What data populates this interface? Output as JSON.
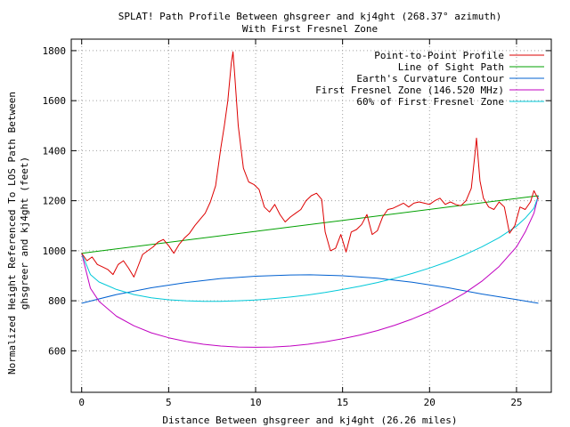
{
  "chart_data": {
    "type": "line",
    "title_line1": "SPLAT! Path Profile Between ghsgreer and kj4ght (268.37° azimuth)",
    "title_line2": "With First Fresnel Zone",
    "xlabel": "Distance Between ghsgreer and kj4ght (26.26 miles)",
    "ylabel_line1": "Normalized Height Referenced To LOS Path Between",
    "ylabel_line2": "ghsgreer and kj4ght (feet)",
    "xlim": [
      -0.6,
      27
    ],
    "ylim": [
      434,
      1846
    ],
    "xticks": [
      0,
      5,
      10,
      15,
      20,
      25
    ],
    "yticks": [
      600,
      800,
      1000,
      1200,
      1400,
      1600,
      1800
    ],
    "grid": true,
    "legend_position": "top-right",
    "series": [
      {
        "name": "Point-to-Point Profile",
        "color": "#dd0000",
        "points": [
          [
            0,
            990
          ],
          [
            0.3,
            960
          ],
          [
            0.6,
            975
          ],
          [
            0.9,
            945
          ],
          [
            1.2,
            935
          ],
          [
            1.5,
            925
          ],
          [
            1.8,
            905
          ],
          [
            2.1,
            945
          ],
          [
            2.4,
            960
          ],
          [
            2.7,
            930
          ],
          [
            3.0,
            895
          ],
          [
            3.2,
            930
          ],
          [
            3.5,
            985
          ],
          [
            3.8,
            1000
          ],
          [
            4.1,
            1015
          ],
          [
            4.4,
            1035
          ],
          [
            4.7,
            1045
          ],
          [
            5.0,
            1020
          ],
          [
            5.3,
            990
          ],
          [
            5.6,
            1025
          ],
          [
            5.9,
            1050
          ],
          [
            6.2,
            1070
          ],
          [
            6.5,
            1100
          ],
          [
            6.8,
            1125
          ],
          [
            7.1,
            1150
          ],
          [
            7.4,
            1195
          ],
          [
            7.7,
            1260
          ],
          [
            8.0,
            1410
          ],
          [
            8.2,
            1500
          ],
          [
            8.4,
            1600
          ],
          [
            8.6,
            1750
          ],
          [
            8.7,
            1795
          ],
          [
            8.8,
            1700
          ],
          [
            9.0,
            1500
          ],
          [
            9.3,
            1330
          ],
          [
            9.6,
            1275
          ],
          [
            9.9,
            1265
          ],
          [
            10.2,
            1245
          ],
          [
            10.5,
            1175
          ],
          [
            10.8,
            1155
          ],
          [
            11.1,
            1185
          ],
          [
            11.4,
            1145
          ],
          [
            11.7,
            1115
          ],
          [
            12.0,
            1135
          ],
          [
            12.3,
            1150
          ],
          [
            12.6,
            1165
          ],
          [
            12.9,
            1200
          ],
          [
            13.2,
            1220
          ],
          [
            13.5,
            1230
          ],
          [
            13.8,
            1205
          ],
          [
            14.0,
            1075
          ],
          [
            14.3,
            1000
          ],
          [
            14.6,
            1010
          ],
          [
            14.9,
            1065
          ],
          [
            15.2,
            995
          ],
          [
            15.5,
            1075
          ],
          [
            15.8,
            1085
          ],
          [
            16.1,
            1105
          ],
          [
            16.4,
            1145
          ],
          [
            16.7,
            1065
          ],
          [
            17.0,
            1080
          ],
          [
            17.3,
            1135
          ],
          [
            17.6,
            1165
          ],
          [
            17.9,
            1170
          ],
          [
            18.2,
            1180
          ],
          [
            18.5,
            1190
          ],
          [
            18.8,
            1175
          ],
          [
            19.1,
            1190
          ],
          [
            19.4,
            1195
          ],
          [
            19.7,
            1190
          ],
          [
            20.0,
            1185
          ],
          [
            20.3,
            1200
          ],
          [
            20.6,
            1210
          ],
          [
            20.9,
            1185
          ],
          [
            21.2,
            1195
          ],
          [
            21.5,
            1185
          ],
          [
            21.8,
            1180
          ],
          [
            22.1,
            1200
          ],
          [
            22.4,
            1250
          ],
          [
            22.6,
            1380
          ],
          [
            22.7,
            1450
          ],
          [
            22.9,
            1280
          ],
          [
            23.1,
            1210
          ],
          [
            23.4,
            1175
          ],
          [
            23.7,
            1165
          ],
          [
            24.0,
            1195
          ],
          [
            24.3,
            1175
          ],
          [
            24.6,
            1070
          ],
          [
            24.9,
            1100
          ],
          [
            25.2,
            1175
          ],
          [
            25.5,
            1165
          ],
          [
            25.8,
            1195
          ],
          [
            26.0,
            1240
          ],
          [
            26.26,
            1205
          ]
        ]
      },
      {
        "name": "Line of Sight Path",
        "color": "#00a000",
        "points": [
          [
            0,
            990
          ],
          [
            26.26,
            1220
          ]
        ]
      },
      {
        "name": "Earth's Curvature Contour",
        "color": "#0060d0",
        "points": [
          [
            0,
            790
          ],
          [
            2,
            825
          ],
          [
            4,
            852
          ],
          [
            6,
            873
          ],
          [
            8,
            889
          ],
          [
            10,
            898
          ],
          [
            12,
            903
          ],
          [
            13.13,
            904
          ],
          [
            15,
            900
          ],
          [
            17,
            890
          ],
          [
            19,
            874
          ],
          [
            21,
            853
          ],
          [
            23,
            827
          ],
          [
            25,
            805
          ],
          [
            26.26,
            790
          ]
        ]
      },
      {
        "name": "First Fresnel Zone (146.520 MHz)",
        "color": "#c000c0",
        "points": [
          [
            0,
            990
          ],
          [
            0.5,
            850
          ],
          [
            1,
            798
          ],
          [
            2,
            738
          ],
          [
            3,
            700
          ],
          [
            4,
            672
          ],
          [
            5,
            652
          ],
          [
            6,
            637
          ],
          [
            7,
            626
          ],
          [
            8,
            619
          ],
          [
            9,
            615
          ],
          [
            10,
            614
          ],
          [
            11,
            615
          ],
          [
            12,
            619
          ],
          [
            13,
            626
          ],
          [
            14,
            636
          ],
          [
            15,
            648
          ],
          [
            16,
            663
          ],
          [
            17,
            681
          ],
          [
            18,
            702
          ],
          [
            19,
            727
          ],
          [
            20,
            756
          ],
          [
            21,
            790
          ],
          [
            22,
            830
          ],
          [
            23,
            878
          ],
          [
            24,
            937
          ],
          [
            25,
            1015
          ],
          [
            25.5,
            1075
          ],
          [
            26,
            1150
          ],
          [
            26.26,
            1220
          ]
        ]
      },
      {
        "name": "60% of First Fresnel Zone",
        "color": "#00c8d8",
        "points": [
          [
            0,
            990
          ],
          [
            0.5,
            905
          ],
          [
            1,
            875
          ],
          [
            2,
            845
          ],
          [
            3,
            825
          ],
          [
            4,
            812
          ],
          [
            5,
            804
          ],
          [
            6,
            800
          ],
          [
            7,
            798
          ],
          [
            8,
            798
          ],
          [
            9,
            800
          ],
          [
            10,
            803
          ],
          [
            11,
            808
          ],
          [
            12,
            815
          ],
          [
            13,
            823
          ],
          [
            14,
            833
          ],
          [
            15,
            845
          ],
          [
            16,
            858
          ],
          [
            17,
            873
          ],
          [
            18,
            890
          ],
          [
            19,
            909
          ],
          [
            20,
            931
          ],
          [
            21,
            955
          ],
          [
            22,
            983
          ],
          [
            23,
            1015
          ],
          [
            24,
            1052
          ],
          [
            25,
            1098
          ],
          [
            25.5,
            1130
          ],
          [
            26,
            1170
          ],
          [
            26.26,
            1220
          ]
        ]
      }
    ]
  }
}
